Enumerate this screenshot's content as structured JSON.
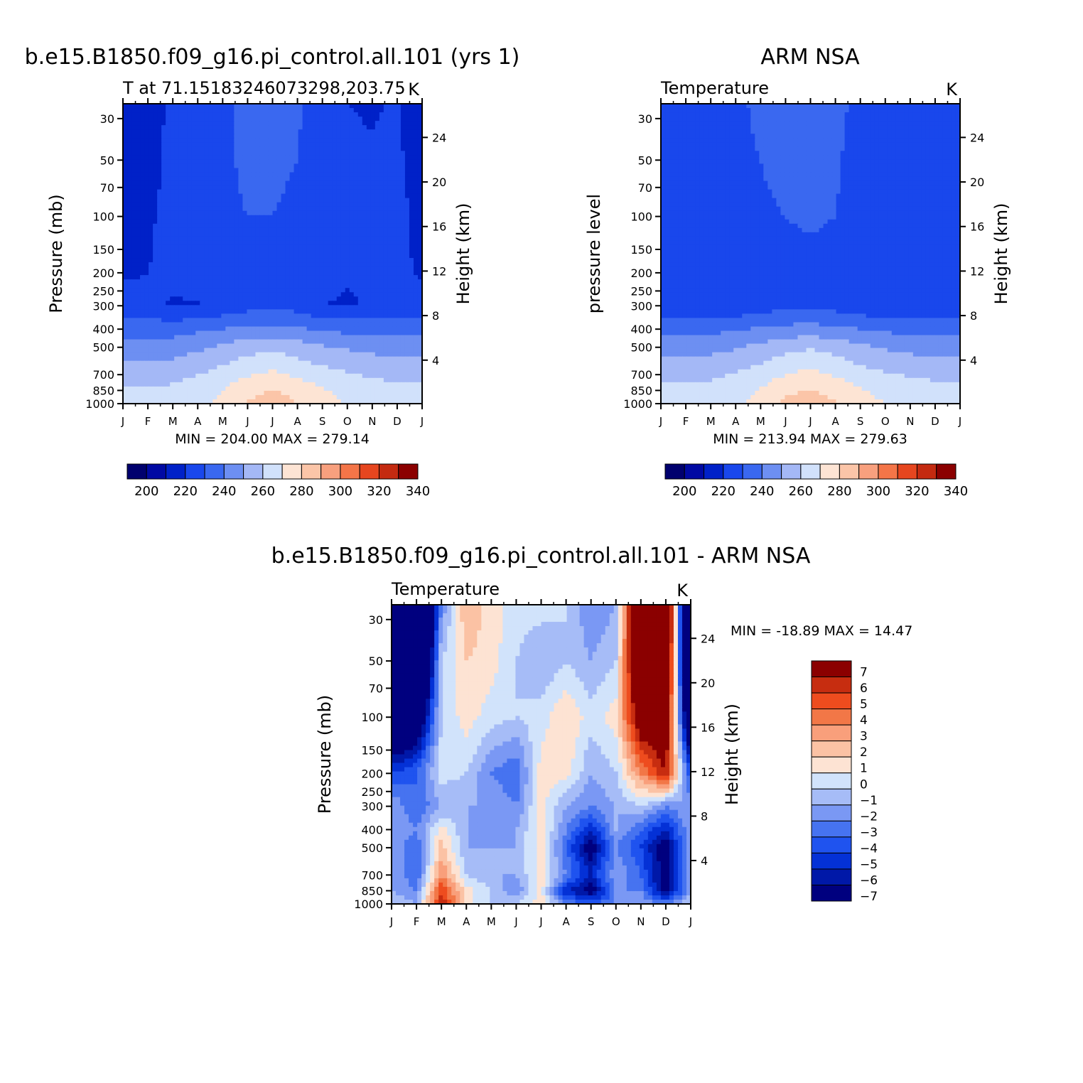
{
  "chart_data": [
    {
      "type": "heatmap",
      "id": "model",
      "main_title": "b.e15.B1850.f09_g16.pi_control.all.101 (yrs 1)",
      "left_title": "T at 71.15183246073298,203.75",
      "right_title": "K",
      "ylabel": "Pressure (mb)",
      "y2label": "Height (km)",
      "x_ticks": [
        "J",
        "F",
        "M",
        "A",
        "M",
        "J",
        "J",
        "A",
        "S",
        "O",
        "N",
        "D",
        "J"
      ],
      "y_ticks": [
        30,
        50,
        70,
        100,
        150,
        200,
        250,
        300,
        400,
        500,
        700,
        850,
        1000
      ],
      "y2_ticks": [
        24,
        20,
        16,
        12,
        8,
        4
      ],
      "ylim": [
        1000,
        25
      ],
      "minmax": "MIN = 204.00 MAX = 279.14",
      "levels": [
        195,
        200,
        205,
        210,
        215,
        220,
        225,
        230,
        235,
        240,
        245,
        250,
        255,
        260,
        265,
        270,
        275,
        280,
        285,
        290,
        295,
        300,
        305,
        310,
        315,
        320,
        325,
        330,
        335,
        340,
        345
      ],
      "months": [
        1,
        2,
        3,
        4,
        5,
        6,
        7,
        8,
        9,
        10,
        11,
        12,
        13
      ],
      "pressure_levels": [
        25,
        50,
        100,
        200,
        300,
        400,
        500,
        700,
        850,
        1000
      ],
      "values": [
        [
          205,
          205,
          220,
          222,
          224,
          226,
          228,
          226,
          220,
          215,
          214,
          216,
          205
        ],
        [
          206,
          206,
          222,
          223,
          224,
          226,
          226,
          225,
          222,
          217,
          216,
          218,
          206
        ],
        [
          210,
          212,
          222,
          223,
          224,
          225,
          225,
          224,
          222,
          220,
          219,
          220,
          210
        ],
        [
          214,
          215,
          218,
          220,
          222,
          223,
          223,
          222,
          218,
          216,
          216,
          217,
          214
        ],
        [
          218,
          217,
          214,
          214,
          218,
          221,
          223,
          221,
          215,
          214,
          216,
          217,
          218
        ],
        [
          231,
          231,
          231,
          233,
          235,
          237,
          238,
          236,
          234,
          232,
          232,
          231,
          231
        ],
        [
          240,
          239,
          240,
          243,
          247,
          251,
          253,
          250,
          246,
          244,
          242,
          241,
          240
        ],
        [
          252,
          251,
          252,
          255,
          259,
          264,
          267,
          263,
          259,
          256,
          254,
          253,
          252
        ],
        [
          257,
          256,
          257,
          260,
          265,
          272,
          276,
          272,
          266,
          262,
          258,
          257,
          257
        ],
        [
          259,
          258,
          259,
          262,
          268,
          276,
          279,
          275,
          268,
          264,
          261,
          259,
          259
        ]
      ]
    },
    {
      "type": "heatmap",
      "id": "obs",
      "main_title": "ARM NSA",
      "left_title": "Temperature",
      "right_title": "K",
      "ylabel": "pressure level",
      "y2label": "Height (km)",
      "x_ticks": [
        "J",
        "F",
        "M",
        "A",
        "M",
        "J",
        "J",
        "A",
        "S",
        "O",
        "N",
        "D",
        "J"
      ],
      "y_ticks": [
        30,
        50,
        70,
        100,
        150,
        200,
        250,
        300,
        400,
        500,
        700,
        850,
        1000
      ],
      "y2_ticks": [
        24,
        20,
        16,
        12,
        8,
        4
      ],
      "ylim": [
        1000,
        25
      ],
      "minmax": "MIN = 213.94 MAX = 279.63",
      "levels": [
        195,
        200,
        205,
        210,
        215,
        220,
        225,
        230,
        235,
        240,
        245,
        250,
        255,
        260,
        265,
        270,
        275,
        280,
        285,
        290,
        295,
        300,
        305,
        310,
        315,
        320,
        325,
        330,
        335,
        340,
        345
      ],
      "months": [
        1,
        2,
        3,
        4,
        5,
        6,
        7,
        8,
        9,
        10,
        11,
        12,
        13
      ],
      "pressure_levels": [
        25,
        50,
        100,
        200,
        300,
        400,
        500,
        700,
        850,
        1000
      ],
      "values": [
        [
          222,
          222,
          223,
          224,
          226,
          228,
          231,
          227,
          223,
          218,
          216,
          218,
          222
        ],
        [
          222,
          222,
          223,
          224,
          225,
          227,
          228,
          226,
          222,
          218,
          216,
          217,
          222
        ],
        [
          222,
          222,
          222,
          223,
          224,
          225,
          226,
          225,
          222,
          219,
          217,
          218,
          222
        ],
        [
          219,
          219,
          220,
          221,
          222,
          223,
          223,
          222,
          220,
          218,
          217,
          218,
          219
        ],
        [
          216,
          216,
          215,
          217,
          220,
          222,
          223,
          221,
          218,
          216,
          216,
          216,
          216
        ],
        [
          233,
          232,
          232,
          234,
          236,
          238,
          239,
          237,
          235,
          233,
          232,
          232,
          233
        ],
        [
          242,
          241,
          242,
          244,
          248,
          252,
          254,
          251,
          247,
          244,
          242,
          241,
          242
        ],
        [
          253,
          252,
          253,
          256,
          260,
          265,
          268,
          264,
          259,
          256,
          254,
          253,
          253
        ],
        [
          258,
          257,
          258,
          261,
          266,
          273,
          276,
          272,
          266,
          262,
          259,
          258,
          258
        ],
        [
          260,
          259,
          260,
          263,
          269,
          277,
          279,
          276,
          269,
          265,
          262,
          260,
          260
        ]
      ]
    },
    {
      "type": "heatmap",
      "id": "diff",
      "main_title": "b.e15.B1850.f09_g16.pi_control.all.101 - ARM NSA",
      "left_title": "Temperature",
      "right_title": "K",
      "ylabel": "Pressure (mb)",
      "y2label": "Height (km)",
      "x_ticks": [
        "J",
        "F",
        "M",
        "A",
        "M",
        "J",
        "J",
        "A",
        "S",
        "O",
        "N",
        "D",
        "J"
      ],
      "y_ticks": [
        30,
        50,
        70,
        100,
        150,
        200,
        250,
        300,
        400,
        500,
        700,
        850,
        1000
      ],
      "y2_ticks": [
        24,
        20,
        16,
        12,
        8,
        4
      ],
      "ylim": [
        1000,
        25
      ],
      "minmax": "MIN = -18.89 MAX =   14.47",
      "levels": [
        -7,
        -6,
        -5,
        -4,
        -3,
        -2,
        -1,
        0,
        1,
        2,
        3,
        4,
        5,
        6,
        7
      ],
      "colorbar_labels": [
        "7",
        "6",
        "5",
        "4",
        "3",
        "2",
        "1",
        "0",
        "-1",
        "-2",
        "-3",
        "-4",
        "-5",
        "-6",
        "-7"
      ],
      "months": [
        1,
        2,
        3,
        4,
        5,
        6,
        7,
        8,
        9,
        10,
        11,
        12,
        13
      ],
      "pressure_levels": [
        25,
        50,
        100,
        200,
        300,
        400,
        500,
        700,
        850,
        1000
      ],
      "values": [
        [
          -17,
          -17,
          -3,
          2,
          0.5,
          -0.5,
          -0.5,
          -1,
          -3,
          -2,
          12,
          12,
          -17
        ],
        [
          -16,
          -16,
          -1,
          1,
          0.5,
          -1,
          -2,
          -1,
          -2,
          -1,
          11,
          11,
          -16
        ],
        [
          -12,
          -10,
          -1,
          0.5,
          -0.5,
          -1,
          -0.5,
          1,
          -0.5,
          0.5,
          8,
          8,
          -12
        ],
        [
          -5,
          -4,
          -0.5,
          -1,
          -3,
          -4,
          0.5,
          0.5,
          -2,
          -1,
          3,
          6,
          -5
        ],
        [
          -2,
          -4,
          -2,
          -2,
          -2,
          -3,
          0.5,
          -2,
          -3,
          -2,
          -1,
          -3,
          -2
        ],
        [
          -2,
          -3,
          0.5,
          -2,
          -3,
          -2,
          0.5,
          -3,
          -6,
          -2,
          -4,
          -6,
          -2
        ],
        [
          -2,
          -4,
          1.5,
          -2,
          -2,
          -2,
          0.5,
          -4,
          -8,
          -3,
          -5,
          -8,
          -2
        ],
        [
          -2,
          -4,
          3,
          -1,
          -2,
          -2,
          0.5,
          -3,
          -6,
          -2,
          -4,
          -8,
          -2
        ],
        [
          -2,
          -3,
          5,
          0.5,
          -1,
          -3,
          0.5,
          -6,
          -8,
          -3,
          -3,
          -8,
          -2
        ],
        [
          -1,
          -2,
          6,
          0.5,
          -1,
          -1,
          0.5,
          -3,
          -4,
          -3,
          -2,
          -3,
          -1
        ]
      ]
    }
  ]
}
